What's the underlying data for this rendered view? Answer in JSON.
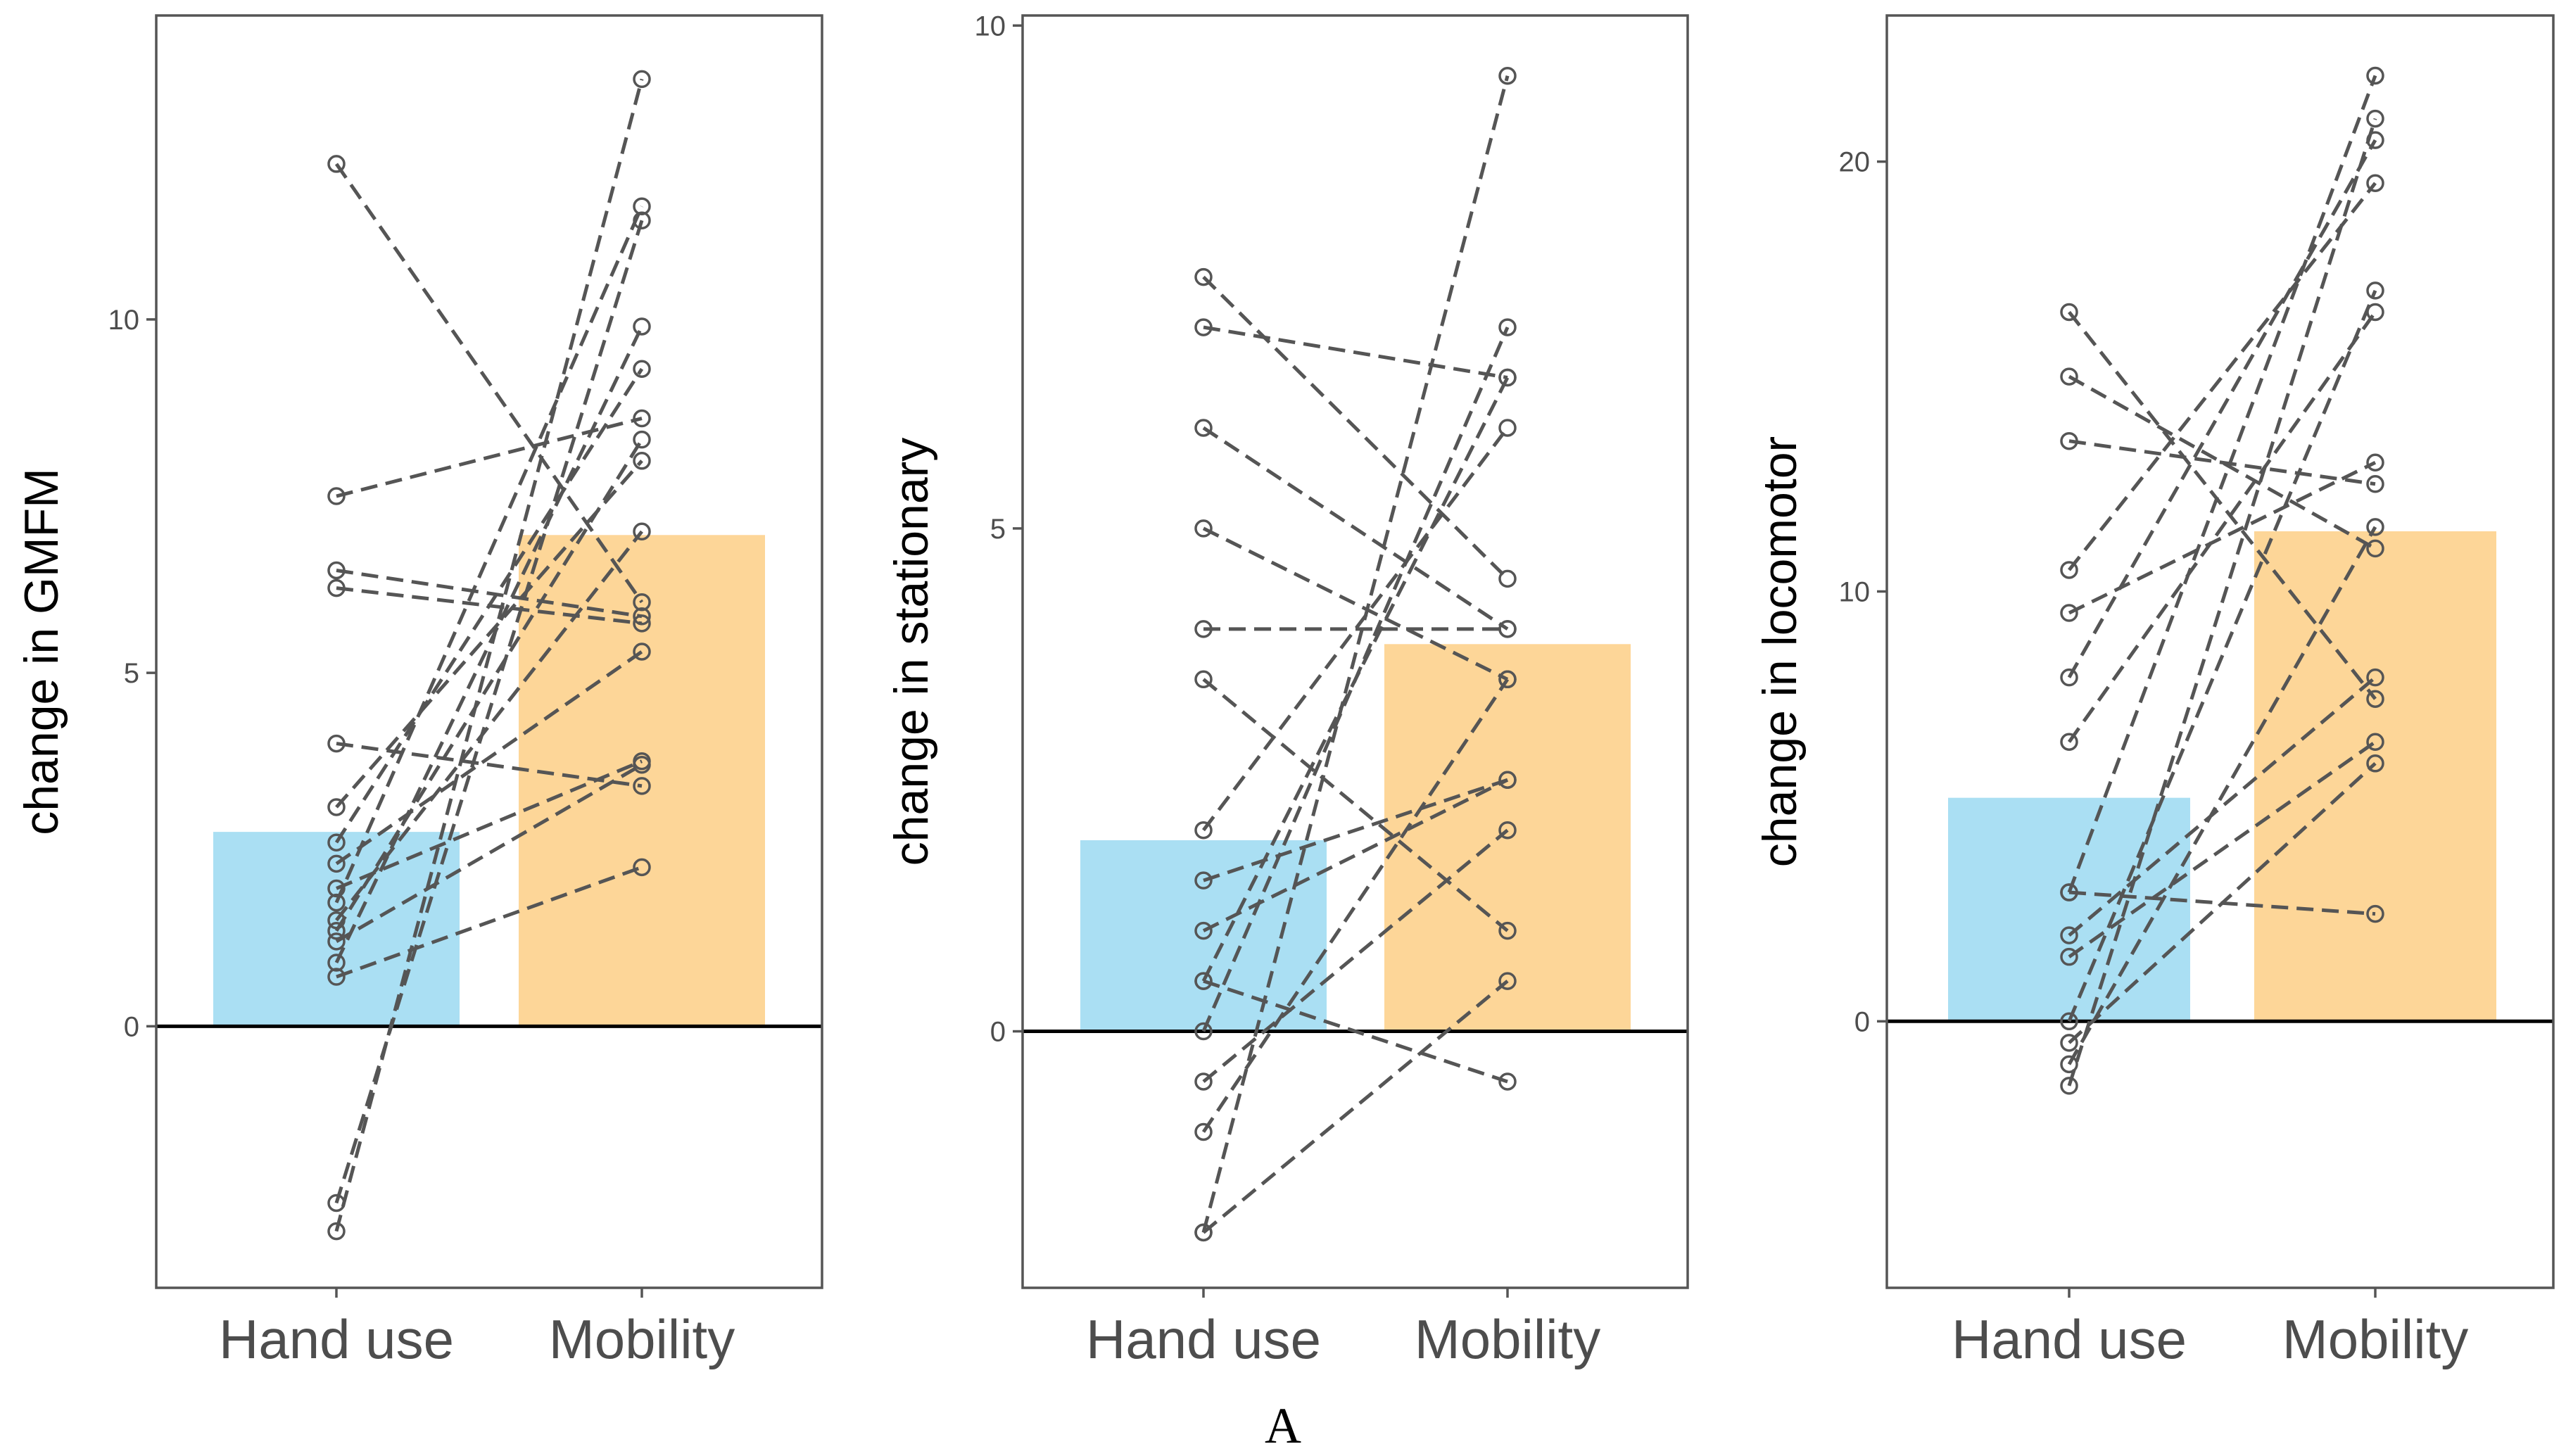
{
  "figure_label": "A",
  "colors": {
    "hand_use": "#aadff3",
    "mobility": "#fdd698",
    "points": "#555555",
    "axis": "#555555"
  },
  "chart_data": [
    {
      "type": "bar",
      "ylabel": "change in GMFM",
      "categories": [
        "Hand use",
        "Mobility"
      ],
      "values": [
        2.75,
        6.95
      ],
      "ylim": [
        -3.7,
        14.3
      ],
      "yticks": [
        0,
        5,
        10
      ],
      "pairs": [
        [
          12.2,
          6.0
        ],
        [
          7.5,
          8.6
        ],
        [
          6.45,
          5.8
        ],
        [
          6.2,
          5.7
        ],
        [
          4.0,
          3.4
        ],
        [
          3.1,
          8.0
        ],
        [
          2.6,
          9.3
        ],
        [
          2.3,
          5.3
        ],
        [
          1.95,
          3.75
        ],
        [
          1.75,
          11.6
        ],
        [
          1.5,
          7.0
        ],
        [
          1.35,
          8.3
        ],
        [
          1.2,
          3.7
        ],
        [
          0.9,
          9.9
        ],
        [
          0.7,
          2.25
        ],
        [
          -2.5,
          11.4
        ],
        [
          -2.9,
          13.4
        ]
      ]
    },
    {
      "type": "bar",
      "ylabel": "change in stationary",
      "categories": [
        "Hand use",
        "Mobility"
      ],
      "values": [
        1.9,
        3.85
      ],
      "ylim": [
        -2.55,
        10.1
      ],
      "yticks": [
        0,
        5,
        10
      ],
      "pairs": [
        [
          7.5,
          4.5
        ],
        [
          7.0,
          6.5
        ],
        [
          6.0,
          4.0
        ],
        [
          5.0,
          3.5
        ],
        [
          4.0,
          4.0
        ],
        [
          3.5,
          1.0
        ],
        [
          2.0,
          6.0
        ],
        [
          1.5,
          2.5
        ],
        [
          1.0,
          2.5
        ],
        [
          0.5,
          6.5
        ],
        [
          0.5,
          -0.5
        ],
        [
          0.0,
          7.0
        ],
        [
          -0.5,
          2.0
        ],
        [
          -1.0,
          3.5
        ],
        [
          -2.0,
          9.5
        ],
        [
          -2.0,
          0.5
        ]
      ]
    },
    {
      "type": "bar",
      "ylabel": "change in locomotor",
      "categories": [
        "Hand use",
        "Mobility"
      ],
      "values": [
        5.2,
        11.4
      ],
      "ylim": [
        -6.2,
        23.4
      ],
      "yticks": [
        0,
        10,
        20
      ],
      "pairs": [
        [
          16.5,
          7.5
        ],
        [
          15.0,
          11.0
        ],
        [
          13.5,
          12.5
        ],
        [
          10.5,
          19.5
        ],
        [
          9.5,
          13.0
        ],
        [
          8.0,
          20.5
        ],
        [
          6.5,
          16.5
        ],
        [
          3.0,
          22.0
        ],
        [
          3.0,
          2.5
        ],
        [
          2.0,
          8.0
        ],
        [
          1.5,
          6.5
        ],
        [
          0.0,
          17.0
        ],
        [
          -0.5,
          6.0
        ],
        [
          -1.0,
          11.5
        ],
        [
          -1.5,
          21.0
        ]
      ]
    }
  ]
}
